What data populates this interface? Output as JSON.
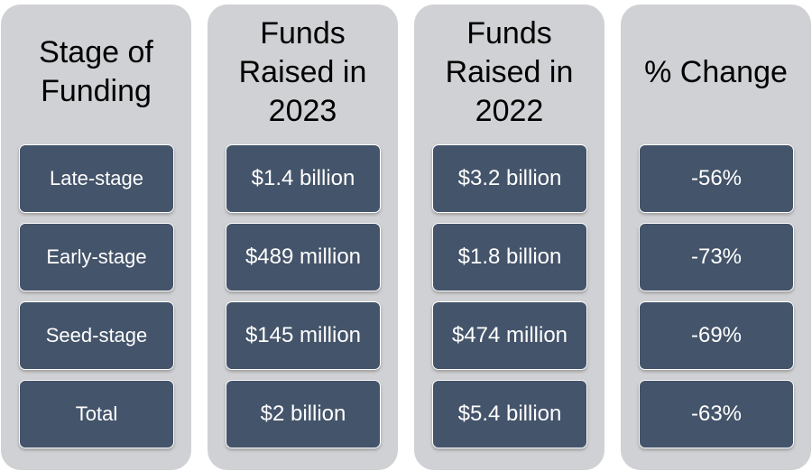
{
  "columns": [
    {
      "header": "Stage of\nFunding",
      "cells": [
        "Late-stage",
        "Early-stage",
        "Seed-stage",
        "Total"
      ]
    },
    {
      "header": "Funds\nRaised in\n2023",
      "cells": [
        "$1.4 billion",
        "$489 million",
        "$145 million",
        "$2 billion"
      ]
    },
    {
      "header": "Funds\nRaised in\n2022",
      "cells": [
        "$3.2 billion",
        "$1.8 billion",
        "$474 million",
        "$5.4 billion"
      ]
    },
    {
      "header": "% Change",
      "cells": [
        "-56%",
        "-73%",
        "-69%",
        "-63%"
      ]
    }
  ],
  "colors": {
    "column_bg": "#d0d1d4",
    "cell_bg": "#44546a",
    "cell_text": "#ffffff",
    "header_text": "#000000"
  }
}
